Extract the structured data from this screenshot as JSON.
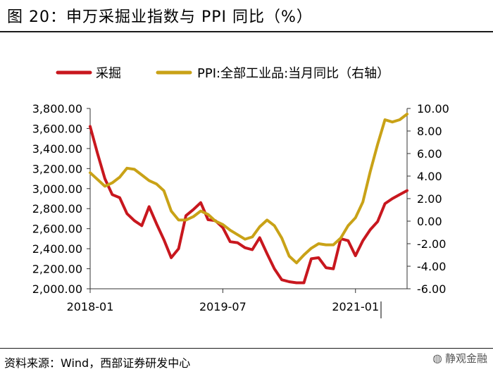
{
  "figure": {
    "title": "图 20：申万采掘业指数与 PPI 同比（%）",
    "source": "资料来源：Wind，西部证券研发中心",
    "watermark": "静观金融",
    "watermark_icon": "wechat-icon"
  },
  "chart_data": {
    "type": "line",
    "title": "",
    "xlabel": "",
    "ylabel": "",
    "legend_position": "top",
    "x_tick_labels": [
      "2018-01",
      "2019-07",
      "2021-01"
    ],
    "y_left": {
      "range": [
        2000,
        3800
      ],
      "ticks": [
        "2,000.00",
        "2,200.00",
        "2,400.00",
        "2,600.00",
        "2,800.00",
        "3,000.00",
        "3,200.00",
        "3,400.00",
        "3,600.00",
        "3,800.00"
      ]
    },
    "y_right": {
      "range": [
        -6,
        10
      ],
      "ticks": [
        "-6.00",
        "-4.00",
        "-2.00",
        "0.00",
        "2.00",
        "4.00",
        "6.00",
        "8.00",
        "10.00"
      ]
    },
    "x": [
      "2018-01",
      "2018-02",
      "2018-03",
      "2018-04",
      "2018-05",
      "2018-06",
      "2018-07",
      "2018-08",
      "2018-09",
      "2018-10",
      "2018-11",
      "2018-12",
      "2019-01",
      "2019-02",
      "2019-03",
      "2019-04",
      "2019-05",
      "2019-06",
      "2019-07",
      "2019-08",
      "2019-09",
      "2019-10",
      "2019-11",
      "2019-12",
      "2020-01",
      "2020-02",
      "2020-03",
      "2020-04",
      "2020-05",
      "2020-06",
      "2020-07",
      "2020-08",
      "2020-09",
      "2020-10",
      "2020-11",
      "2020-12",
      "2021-01",
      "2021-02",
      "2021-03",
      "2021-04",
      "2021-05",
      "2021-06",
      "2021-07",
      "2021-08"
    ],
    "series": [
      {
        "name": "采掘",
        "axis": "left",
        "color": "#c8171e",
        "values": [
          3620,
          3350,
          3100,
          2940,
          2910,
          2750,
          2680,
          2630,
          2820,
          2650,
          2490,
          2310,
          2400,
          2730,
          2790,
          2860,
          2690,
          2680,
          2610,
          2470,
          2460,
          2410,
          2390,
          2510,
          2350,
          2200,
          2090,
          2070,
          2060,
          2060,
          2300,
          2310,
          2210,
          2200,
          2500,
          2480,
          2330,
          2480,
          2590,
          2670,
          2850,
          2900,
          2940,
          2980
        ]
      },
      {
        "name": "PPI:全部工业品:当月同比（右轴）",
        "axis": "right",
        "color": "#c9a217",
        "values": [
          4.3,
          3.7,
          3.1,
          3.4,
          3.9,
          4.7,
          4.6,
          4.1,
          3.6,
          3.3,
          2.7,
          0.9,
          0.1,
          0.1,
          0.4,
          0.9,
          0.6,
          0.0,
          -0.3,
          -0.8,
          -1.2,
          -1.6,
          -1.4,
          -0.5,
          0.1,
          -0.4,
          -1.5,
          -3.1,
          -3.7,
          -3.0,
          -2.4,
          -2.0,
          -2.1,
          -2.1,
          -1.5,
          -0.4,
          0.3,
          1.7,
          4.4,
          6.8,
          9.0,
          8.8,
          9.0,
          9.5
        ]
      }
    ]
  }
}
